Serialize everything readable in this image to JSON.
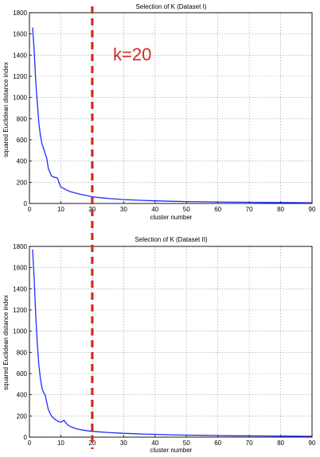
{
  "chart_data": [
    {
      "type": "line",
      "title": "Selection of K (Dataset I)",
      "xlabel": "cluster number",
      "ylabel": "squared Euclidean distance index",
      "xlim": [
        0,
        90
      ],
      "ylim": [
        0,
        1800
      ],
      "xticks": [
        "0",
        "10",
        "20",
        "30",
        "40",
        "50",
        "60",
        "70",
        "80",
        "90"
      ],
      "yticks": [
        "0",
        "200",
        "400",
        "600",
        "800",
        "1000",
        "1200",
        "1400",
        "1600",
        "1800"
      ],
      "grid": true,
      "color": "#1f2bff",
      "series": [
        {
          "x": [
            1,
            1.5,
            2,
            2.5,
            3,
            3.5,
            4,
            4.5,
            5,
            5.5,
            6,
            7,
            8,
            8.5,
            9,
            9.5,
            10,
            11,
            12,
            13,
            14,
            15,
            16,
            17,
            18,
            19,
            20,
            22,
            24,
            26,
            28,
            30,
            33,
            36,
            40,
            45,
            50,
            55,
            60,
            65,
            70,
            75,
            80,
            85,
            90
          ],
          "y": [
            1660,
            1450,
            1150,
            950,
            760,
            640,
            560,
            520,
            470,
            430,
            330,
            260,
            245,
            245,
            235,
            190,
            155,
            140,
            125,
            112,
            104,
            96,
            88,
            82,
            76,
            70,
            62,
            56,
            50,
            45,
            41,
            37,
            33,
            29,
            25,
            21,
            18,
            16,
            14,
            12,
            11,
            10,
            9,
            8,
            7
          ]
        }
      ]
    },
    {
      "type": "line",
      "title": "Selection of K (Dataset II)",
      "xlabel": "cluster number",
      "ylabel": "squared Euclidean distance index",
      "xlim": [
        0,
        90
      ],
      "ylim": [
        0,
        1800
      ],
      "xticks": [
        "0",
        "10",
        "20",
        "30",
        "40",
        "50",
        "60",
        "70",
        "80",
        "90"
      ],
      "yticks": [
        "0",
        "200",
        "400",
        "600",
        "800",
        "1000",
        "1200",
        "1400",
        "1600",
        "1800"
      ],
      "grid": true,
      "color": "#1f2bff",
      "series": [
        {
          "x": [
            1,
            1.5,
            2,
            2.5,
            3,
            3.5,
            4,
            4.5,
            5,
            5.5,
            6,
            7,
            8,
            9,
            10,
            11,
            12,
            13,
            14,
            15,
            16,
            17,
            18,
            19,
            20,
            22,
            24,
            26,
            28,
            30,
            33,
            36,
            40,
            45,
            50,
            55,
            60,
            65,
            70,
            75,
            80,
            85,
            90
          ],
          "y": [
            1770,
            1500,
            1150,
            880,
            680,
            550,
            460,
            420,
            400,
            330,
            260,
            200,
            170,
            150,
            140,
            160,
            120,
            100,
            90,
            78,
            72,
            66,
            62,
            58,
            55,
            50,
            46,
            42,
            39,
            36,
            32,
            29,
            26,
            22,
            19,
            17,
            15,
            13,
            12,
            11,
            10,
            9,
            8
          ]
        }
      ]
    }
  ],
  "annotation": {
    "label": "k=20",
    "x": 20,
    "color": "#d12c1c"
  }
}
